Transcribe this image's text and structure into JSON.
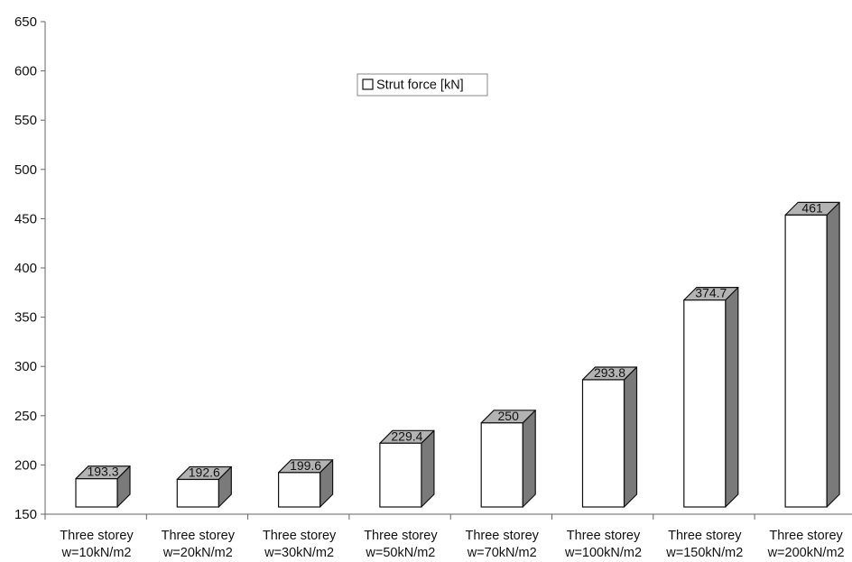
{
  "chart_data": {
    "type": "bar",
    "title": "",
    "xlabel": "",
    "ylabel": "",
    "ylim": [
      150,
      650
    ],
    "yticks": [
      150,
      200,
      250,
      300,
      350,
      400,
      450,
      500,
      550,
      600,
      650
    ],
    "grid": false,
    "legend_position": "top-center",
    "categories": [
      [
        "Three storey",
        "w=10kN/m2"
      ],
      [
        "Three storey",
        "w=20kN/m2"
      ],
      [
        "Three storey",
        "w=30kN/m2"
      ],
      [
        "Three storey",
        "w=50kN/m2"
      ],
      [
        "Three storey",
        "w=70kN/m2"
      ],
      [
        "Three storey",
        "w=100kN/m2"
      ],
      [
        "Three storey",
        "w=150kN/m2"
      ],
      [
        "Three storey",
        "w=200kN/m2"
      ]
    ],
    "series": [
      {
        "name": "Strut force [kN]",
        "values": [
          193.3,
          192.6,
          199.6,
          229.4,
          250,
          293.8,
          374.7,
          461
        ],
        "labels": [
          "193.3",
          "192.6",
          "199.6",
          "229.4",
          "250",
          "293.8",
          "374.7",
          "461"
        ],
        "color": "#ffffff",
        "top_color": "#b3b3b3",
        "side_color": "#7a7a7a"
      }
    ]
  }
}
